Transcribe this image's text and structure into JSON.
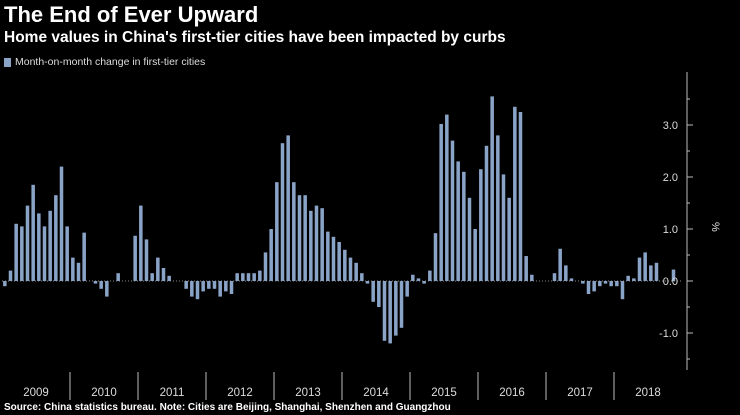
{
  "chart_data": {
    "type": "bar",
    "title": "The End of Ever Upward",
    "subtitle": "Home values in China's first-tier cities have been impacted by curbs",
    "legend": [
      "Month-on-month change in first-tier cities"
    ],
    "ylabel": "%",
    "ylim": [
      -1.6,
      4.0
    ],
    "yticks": [
      "-1.0",
      "0.0",
      "1.0",
      "2.0",
      "3.0"
    ],
    "ytick_values": [
      -1.0,
      0.0,
      1.0,
      2.0,
      3.0
    ],
    "categories": [
      "2009",
      "2010",
      "2011",
      "2012",
      "2013",
      "2014",
      "2015",
      "2016",
      "2017",
      "2018"
    ],
    "series": [
      {
        "name": "Month-on-month change in first-tier cities",
        "values": [
          [
            -0.1,
            0.2,
            1.1,
            1.05,
            1.45,
            1.85,
            1.3,
            1.05,
            1.35,
            1.65,
            2.2,
            1.05
          ],
          [
            0.45,
            0.35,
            0.93,
            0.0,
            -0.05,
            -0.15,
            -0.3,
            0.0,
            0.15,
            0.0,
            0.0,
            0.87
          ],
          [
            1.45,
            0.8,
            0.15,
            0.45,
            0.25,
            0.1,
            0.0,
            0.0,
            -0.15,
            -0.3,
            -0.35,
            -0.2
          ],
          [
            -0.15,
            -0.15,
            -0.3,
            -0.2,
            -0.25,
            0.15,
            0.15,
            0.15,
            0.15,
            0.2,
            0.55,
            1.0
          ],
          [
            1.9,
            2.65,
            2.8,
            1.9,
            1.65,
            1.65,
            1.35,
            1.45,
            1.4,
            0.95,
            0.85,
            0.75
          ],
          [
            0.6,
            0.45,
            0.35,
            0.15,
            -0.05,
            -0.4,
            -0.5,
            -1.15,
            -1.2,
            -1.05,
            -0.9,
            -0.3
          ],
          [
            0.12,
            0.05,
            -0.05,
            0.2,
            0.92,
            3.02,
            3.2,
            2.7,
            2.3,
            2.1,
            1.6,
            1.0
          ],
          [
            2.15,
            2.6,
            3.55,
            2.8,
            2.05,
            1.6,
            3.35,
            3.25,
            0.48,
            0.12,
            0.0,
            0.0
          ],
          [
            0.0,
            0.15,
            0.62,
            0.3,
            0.05,
            0.0,
            -0.05,
            -0.25,
            -0.2,
            -0.1,
            -0.05,
            -0.1
          ],
          [
            -0.1,
            -0.35,
            0.1,
            0.05,
            0.45,
            0.55,
            0.3,
            0.35,
            0.0,
            0.0,
            0.22,
            0.0
          ]
        ]
      }
    ]
  },
  "source": "Source: China statistics bureau. Note: Cities are Beijing, Shanghai, Shenzhen and Guangzhou",
  "colors": {
    "background": "#000000",
    "bar": "#8aa4c8",
    "axis": "#bbbbbb",
    "grid": "#888888",
    "text": "#dddddd"
  }
}
